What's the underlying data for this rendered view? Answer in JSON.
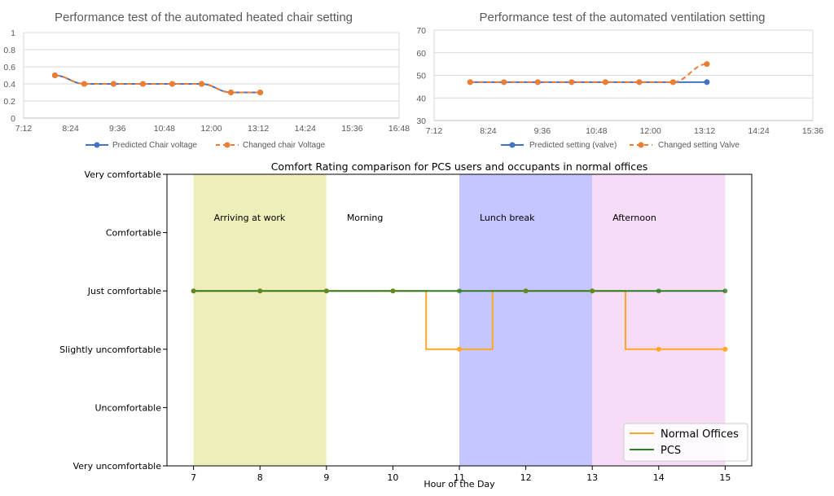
{
  "chart_data": [
    {
      "type": "line",
      "title": "Performance test of the automated heated chair setting",
      "xlabel": "",
      "ylabel": "",
      "x_ticks": [
        "7:12",
        "8:24",
        "9:36",
        "10:48",
        "12:00",
        "13:12",
        "14:24",
        "15:36",
        "16:48"
      ],
      "y_ticks": [
        "0",
        "0.2",
        "0.4",
        "0.6",
        "0.8",
        "1"
      ],
      "ylim": [
        0,
        1
      ],
      "x": [
        "8:00",
        "8:45",
        "9:30",
        "10:15",
        "11:00",
        "11:45",
        "12:30",
        "13:15"
      ],
      "series": [
        {
          "name": "Predicted Chair voltage",
          "values": [
            0.5,
            0.4,
            0.4,
            0.4,
            0.4,
            0.4,
            0.3,
            0.3
          ],
          "color": "#4472C4",
          "style": "solid"
        },
        {
          "name": "Changed chair Voltage",
          "values": [
            0.5,
            0.4,
            0.4,
            0.4,
            0.4,
            0.4,
            0.3,
            0.3
          ],
          "color": "#ED7D31",
          "style": "dashed"
        }
      ],
      "grid": true,
      "legend": "bottom"
    },
    {
      "type": "line",
      "title": "Performance test of the automated ventilation setting",
      "xlabel": "",
      "ylabel": "",
      "x_ticks": [
        "7:12",
        "8:24",
        "9:36",
        "10:48",
        "12:00",
        "13:12",
        "14:24",
        "15:36"
      ],
      "y_ticks": [
        "30",
        "40",
        "50",
        "60",
        "70"
      ],
      "ylim": [
        30,
        70
      ],
      "x": [
        "8:00",
        "8:45",
        "9:30",
        "10:15",
        "11:00",
        "11:45",
        "12:30",
        "13:15"
      ],
      "series": [
        {
          "name": "Predicted setting (valve)",
          "values": [
            47,
            47,
            47,
            47,
            47,
            47,
            47,
            47
          ],
          "color": "#4472C4",
          "style": "solid"
        },
        {
          "name": "Changed setting Valve",
          "values": [
            47,
            47,
            47,
            47,
            47,
            47,
            47,
            55
          ],
          "color": "#ED7D31",
          "style": "dashed"
        }
      ],
      "grid": true,
      "legend": "bottom"
    },
    {
      "type": "line",
      "title": "Comfort Rating comparison for PCS users and occupants in normal offices",
      "xlabel": "Hour  of the Day",
      "ylabel": "",
      "x_ticks": [
        7,
        8,
        9,
        10,
        11,
        12,
        13,
        14,
        15
      ],
      "xlim": [
        6.6,
        15.4
      ],
      "categories_y": [
        "Very uncomfortable",
        "Uncomfortable",
        "Slightly uncomfortable",
        "Just comfortable",
        "Comfortable",
        "Very comfortable"
      ],
      "ylim": [
        0,
        5
      ],
      "regions": [
        {
          "label": "Arriving at work",
          "from": 7,
          "to": 9,
          "color": "#EEEEBB"
        },
        {
          "label": "Morning",
          "from": 9,
          "to": 11,
          "color": "#FFFFFF"
        },
        {
          "label": "Lunch break",
          "from": 11,
          "to": 13,
          "color": "#C5C5FF"
        },
        {
          "label": "Afternoon",
          "from": 13,
          "to": 15,
          "color": "#F7DCF8"
        }
      ],
      "series": [
        {
          "name": "Normal Offices",
          "color": "#FFA726",
          "step": [
            [
              7,
              3
            ],
            [
              10.5,
              3
            ],
            [
              10.5,
              2
            ],
            [
              11.5,
              2
            ],
            [
              11.5,
              3
            ],
            [
              13.5,
              3
            ],
            [
              13.5,
              2
            ],
            [
              15,
              2
            ]
          ],
          "markers": [
            [
              7,
              3
            ],
            [
              8,
              3
            ],
            [
              9,
              3
            ],
            [
              10,
              3
            ],
            [
              11,
              2
            ],
            [
              12,
              3
            ],
            [
              13,
              3
            ],
            [
              14,
              2
            ],
            [
              15,
              2
            ]
          ]
        },
        {
          "name": "PCS",
          "color": "#2E7D22",
          "step": [
            [
              7,
              3
            ],
            [
              15,
              3
            ]
          ],
          "markers": [
            [
              7,
              3
            ],
            [
              8,
              3
            ],
            [
              9,
              3
            ],
            [
              10,
              3
            ],
            [
              11,
              3
            ],
            [
              12,
              3
            ],
            [
              13,
              3
            ],
            [
              14,
              3
            ],
            [
              15,
              3
            ]
          ]
        }
      ],
      "grid": false,
      "legend": "bottom-right"
    }
  ]
}
